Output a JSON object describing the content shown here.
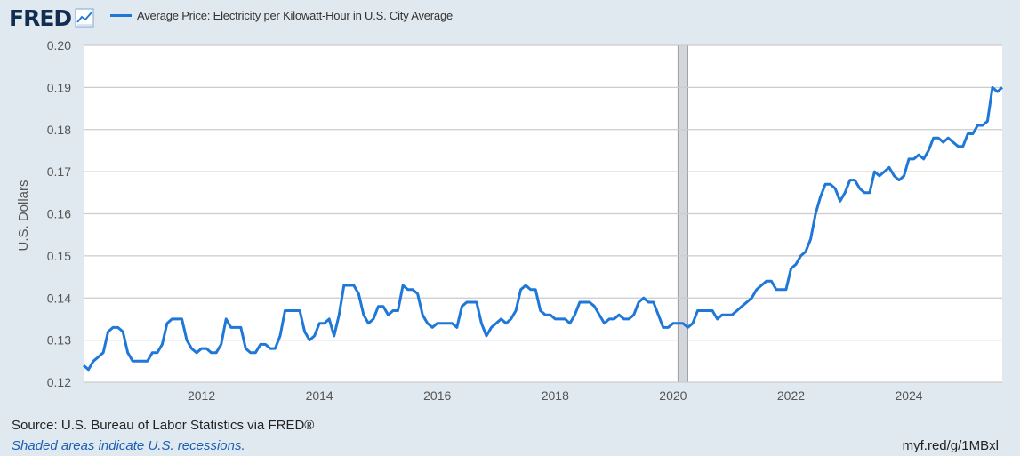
{
  "header": {
    "logo_text": "FRED",
    "logo_icon": "line-chart-icon"
  },
  "colors": {
    "background": "#e1e9f0",
    "plot_background": "#ffffff",
    "line": "#1f77d8",
    "grid": "#cccccc",
    "recession_shade": "#d3d7db",
    "logo": "#112e51"
  },
  "chart_data": {
    "type": "line",
    "title": "",
    "ylabel": "U.S. Dollars",
    "xlabel": "",
    "ylim": [
      0.12,
      0.2
    ],
    "y_ticks": [
      "0.12",
      "0.13",
      "0.14",
      "0.15",
      "0.16",
      "0.17",
      "0.18",
      "0.19",
      "0.20"
    ],
    "x_ticks": [
      "2012",
      "2014",
      "2016",
      "2018",
      "2020",
      "2022",
      "2024"
    ],
    "grid": "horizontal",
    "recessions": [
      {
        "start": "2020-02",
        "end": "2020-04"
      }
    ],
    "series": [
      {
        "name": "Average Price: Electricity per Kilowatt-Hour in U.S. City Average",
        "start": "2010-01",
        "frequency": "monthly",
        "values": [
          0.124,
          0.123,
          0.125,
          0.126,
          0.127,
          0.132,
          0.133,
          0.133,
          0.132,
          0.127,
          0.125,
          0.125,
          0.125,
          0.125,
          0.127,
          0.127,
          0.129,
          0.134,
          0.135,
          0.135,
          0.135,
          0.13,
          0.128,
          0.127,
          0.128,
          0.128,
          0.127,
          0.127,
          0.129,
          0.135,
          0.133,
          0.133,
          0.133,
          0.128,
          0.127,
          0.127,
          0.129,
          0.129,
          0.128,
          0.128,
          0.131,
          0.137,
          0.137,
          0.137,
          0.137,
          0.132,
          0.13,
          0.131,
          0.134,
          0.134,
          0.135,
          0.131,
          0.136,
          0.143,
          0.143,
          0.143,
          0.141,
          0.136,
          0.134,
          0.135,
          0.138,
          0.138,
          0.136,
          0.137,
          0.137,
          0.143,
          0.142,
          0.142,
          0.141,
          0.136,
          0.134,
          0.133,
          0.134,
          0.134,
          0.134,
          0.134,
          0.133,
          0.138,
          0.139,
          0.139,
          0.139,
          0.134,
          0.131,
          0.133,
          0.134,
          0.135,
          0.134,
          0.135,
          0.137,
          0.142,
          0.143,
          0.142,
          0.142,
          0.137,
          0.136,
          0.136,
          0.135,
          0.135,
          0.135,
          0.134,
          0.136,
          0.139,
          0.139,
          0.139,
          0.138,
          0.136,
          0.134,
          0.135,
          0.135,
          0.136,
          0.135,
          0.135,
          0.136,
          0.139,
          0.14,
          0.139,
          0.139,
          0.136,
          0.133,
          0.133,
          0.134,
          0.134,
          0.134,
          0.133,
          0.134,
          0.137,
          0.137,
          0.137,
          0.137,
          0.135,
          0.136,
          0.136,
          0.136,
          0.137,
          0.138,
          0.139,
          0.14,
          0.142,
          0.143,
          0.144,
          0.144,
          0.142,
          0.142,
          0.142,
          0.147,
          0.148,
          0.15,
          0.151,
          0.154,
          0.16,
          0.164,
          0.167,
          0.167,
          0.166,
          0.163,
          0.165,
          0.168,
          0.168,
          0.166,
          0.165,
          0.165,
          0.17,
          0.169,
          0.17,
          0.171,
          0.169,
          0.168,
          0.169,
          0.173,
          0.173,
          0.174,
          0.173,
          0.175,
          0.178,
          0.178,
          0.177,
          0.178,
          0.177,
          0.176,
          0.176,
          0.179,
          0.179,
          0.181,
          0.181,
          0.182,
          0.19,
          0.189,
          0.19
        ]
      }
    ]
  },
  "footer": {
    "source": "Source: U.S. Bureau of Labor Statistics via FRED®",
    "recession_note": "Shaded areas indicate U.S. recessions.",
    "short_url": "myf.red/g/1MBxl"
  }
}
